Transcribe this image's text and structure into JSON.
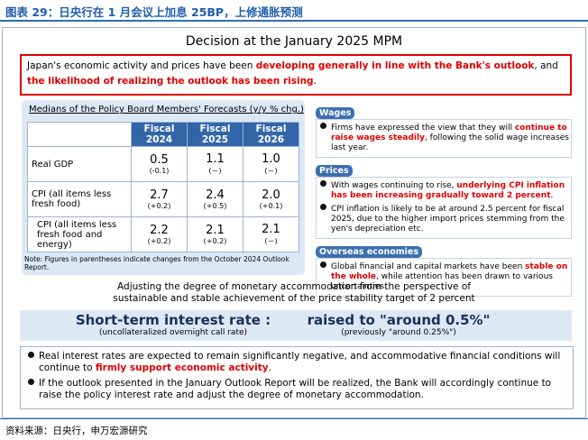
{
  "header": {
    "title": "图表 29：日央行在 1 月会议上加息 25BP，上修通胀预测",
    "source": "资料来源：日央行，申万宏源研究"
  },
  "decision": {
    "title": "Decision at the January 2025 MPM"
  },
  "summary": {
    "parts": [
      "Japan's economic activity and prices have been ",
      "developing generally in line with the Bank's outlook",
      ", and ",
      "the likelihood of realizing the outlook has been rising",
      "."
    ]
  },
  "forecast": {
    "title": "Medians of the Policy Board Members' Forecasts (y/y % chg.)",
    "columns": [
      "Fiscal 2024",
      "Fiscal 2025",
      "Fiscal 2026"
    ],
    "rows": [
      {
        "label": "Real GDP",
        "values": [
          "0.5",
          "1.1",
          "1.0"
        ],
        "changes": [
          "(-0.1)",
          "(－)",
          "(－)"
        ]
      },
      {
        "label": "CPI (all items less fresh food)",
        "values": [
          "2.7",
          "2.4",
          "2.0"
        ],
        "changes": [
          "(+0.2)",
          "(+0.5)",
          "(+0.1)"
        ]
      },
      {
        "label": "CPI (all items less fresh food and energy)",
        "values": [
          "2.2",
          "2.1",
          "2.1"
        ],
        "changes": [
          "(+0.2)",
          "(+0.2)",
          "(－)"
        ]
      }
    ],
    "note": "Note: Figures in parentheses indicate changes from the October 2024 Outlook Report."
  },
  "sections": [
    {
      "heading": "Wages",
      "bullets": [
        {
          "parts": [
            "Firms have expressed the view that they will ",
            "continue to raise wages steadily",
            ", following the solid wage increases last year."
          ]
        }
      ]
    },
    {
      "heading": "Prices",
      "bullets": [
        {
          "parts": [
            "With wages continuing to rise, ",
            "underlying CPI inflation has been increasing gradually toward 2 percent",
            "."
          ]
        },
        {
          "parts": [
            "CPI inflation is likely to be at around 2.5 percent for fiscal 2025, due to the higher import prices stemming from the yen's depreciation etc."
          ]
        }
      ]
    },
    {
      "heading": "Overseas economies",
      "bullets": [
        {
          "parts": [
            "Global financial and capital markets have been ",
            "stable on the whole",
            ", while attention has been drawn to various uncertainties."
          ]
        }
      ]
    }
  ],
  "adjust": {
    "lines": [
      "Adjusting the degree of monetary accommodation from the perspective of",
      "sustainable and stable achievement of the price stability target of 2 percent"
    ]
  },
  "rate": {
    "label": "Short-term interest rate :",
    "sublabel": "(uncollateralized overnight call rate)",
    "value": "raised to \"around 0.5%\"",
    "previous": "(previously \"around 0.25%\")"
  },
  "bullets": [
    {
      "parts": [
        "Real interest rates are expected to remain significantly negative, and accommodative financial conditions will continue to ",
        "firmly support economic activity",
        "."
      ]
    },
    {
      "parts": [
        "If the outlook presented in the January Outlook Report will be realized, the Bank will accordingly continue to raise the policy interest rate and adjust the degree of monetary accommodation."
      ]
    }
  ]
}
